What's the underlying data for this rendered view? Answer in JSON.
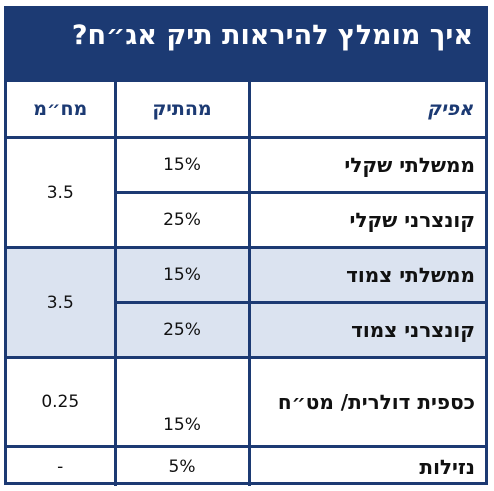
{
  "title": "איך מומלץ להיראות תיק אג״ח?",
  "headers": {
    "channel": "אפיק",
    "portfolio": "מהתיק",
    "duration": "מח״מ"
  },
  "rows": [
    {
      "channel": "ממשלתי שקלי",
      "portfolio": "15%",
      "duration": "3.5"
    },
    {
      "channel": "קונצרני שקלי",
      "portfolio": "25%",
      "duration": ""
    },
    {
      "channel": "ממשלתי צמוד",
      "portfolio": "15%",
      "duration": "3.5"
    },
    {
      "channel": "קונצרני צמוד",
      "portfolio": "25%",
      "duration": ""
    },
    {
      "channel": "כספית דולרית/ מט״ח",
      "portfolio": "15%",
      "duration": "0.25"
    },
    {
      "channel": "נזילות",
      "portfolio": "5%",
      "duration": "-"
    }
  ],
  "colors": {
    "frame": "#1c3a73",
    "highlight": "#dbe3f0"
  }
}
